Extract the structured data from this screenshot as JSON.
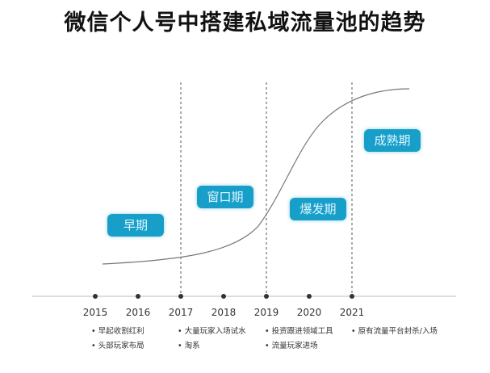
{
  "title": "微信个人号中搭建私域流量池的趋势",
  "stages": [
    "早期",
    "窗口期",
    "爆发期",
    "成熟期"
  ],
  "years": [
    "2015",
    "2016",
    "2017",
    "2018",
    "2019",
    "2020",
    "2021"
  ],
  "notes": [
    [
      "早起收割红利",
      "头部玩家布局"
    ],
    [
      "大量玩家入场试水",
      "淘系"
    ],
    [
      "投资跟进领域工具",
      "流量玩家进场"
    ],
    [
      "原有流量平台封杀/入场"
    ]
  ],
  "colors": {
    "stage_box": "#179fc9",
    "curve": "#777777"
  }
}
